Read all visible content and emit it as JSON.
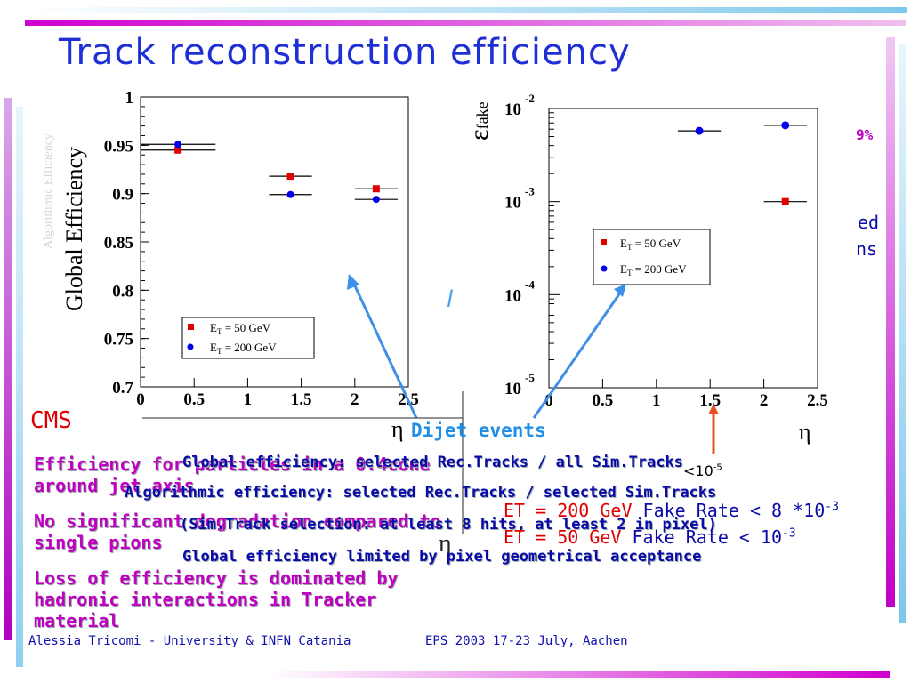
{
  "title": "Track reconstruction efficiency",
  "colors": {
    "accent_blue": "#1f2fd6",
    "magenta": "#c000c0",
    "red": "#e00000",
    "navy": "#0a0aa8"
  },
  "chart_data": [
    {
      "type": "scatter",
      "ylabel": "Global Efficiency",
      "xlim": [
        0,
        2.5
      ],
      "ylim": [
        0.7,
        1.0
      ],
      "xticks": [
        "0",
        "0.5",
        "1",
        "1.5",
        "2",
        "2.5"
      ],
      "yticks": [
        "0.7",
        "0.75",
        "0.8",
        "0.85",
        "0.9",
        "0.95",
        "1"
      ],
      "legend": [
        "E_T = 50 GeV",
        "E_T = 200 GeV"
      ],
      "series": [
        {
          "name": "E_T = 50 GeV",
          "color": "#e00000",
          "marker": "square",
          "points": [
            {
              "x": 0.35,
              "xerr": 0.35,
              "y": 0.945
            },
            {
              "x": 1.4,
              "xerr": 0.2,
              "y": 0.918
            },
            {
              "x": 2.2,
              "xerr": 0.2,
              "y": 0.905
            }
          ]
        },
        {
          "name": "E_T = 200 GeV",
          "color": "#0000ee",
          "marker": "circle",
          "points": [
            {
              "x": 0.35,
              "xerr": 0.35,
              "y": 0.951
            },
            {
              "x": 1.4,
              "xerr": 0.2,
              "y": 0.899
            },
            {
              "x": 2.2,
              "xerr": 0.2,
              "y": 0.894
            }
          ]
        }
      ]
    },
    {
      "type": "scatter",
      "ylabel": "ε_fake",
      "xlabel": "η",
      "xlim": [
        0,
        2.5
      ],
      "ylim_log10": [
        -5,
        -2
      ],
      "xticks": [
        "0",
        "0.5",
        "1",
        "1.5",
        "2",
        "2.5"
      ],
      "yticks": [
        "10^-5",
        "10^-4",
        "10^-3",
        "10^-2"
      ],
      "legend": [
        "E_T = 50 GeV",
        "E_T = 200 GeV"
      ],
      "series": [
        {
          "name": "E_T = 50 GeV",
          "color": "#e00000",
          "marker": "square",
          "points": [
            {
              "x": 2.2,
              "xerr": 0.2,
              "log10y": -3.0
            }
          ]
        },
        {
          "name": "E_T = 200 GeV",
          "color": "#0000ee",
          "marker": "circle",
          "points": [
            {
              "x": 1.4,
              "xerr": 0.2,
              "log10y": -2.24
            },
            {
              "x": 2.2,
              "xerr": 0.2,
              "log10y": -2.18
            }
          ]
        }
      ]
    }
  ],
  "plot1": {
    "ylabel": "Global Efficiency",
    "legend": [
      "E",
      "T",
      " = 50 GeV",
      "E",
      "T",
      " = 200 GeV"
    ]
  },
  "plot2": {
    "ylabel_main": "ε",
    "ylabel_sub": "fake",
    "eta": "η",
    "legend": [
      "E",
      "T",
      " = 50 GeV",
      "E",
      "T",
      " = 200 GeV"
    ]
  },
  "labels": {
    "cms": "CMS",
    "eta1": "η",
    "dijet": "Dijet events",
    "eta2": "η",
    "frag_99": "9%",
    "frag_ed": "ed",
    "frag_ns": "ns",
    "frag_l": "l",
    "frag_10": "<10",
    "frag_5": "-5",
    "ghost_eta": "η"
  },
  "left_text": {
    "l1": "Efficiency for particles in a 0.4cone",
    "l1b": "around jet axis",
    "l2": "No significant degradation compared to",
    "l2b": "single pions",
    "l3": "Loss of efficiency is dominated by",
    "l3b": "hadronic interactions in Tracker",
    "l3c": "material"
  },
  "mid_text": {
    "m1": "Global efficiency: selected Rec.Tracks / all Sim.Tracks",
    "m2": "Algorithmic efficiency: selected Rec.Tracks / selected Sim.Tracks",
    "m3": "(Sim.Track selection: at least 8 hits, at least 2 in pixel)",
    "m4": "Global efficiency limited by pixel geometrical acceptance"
  },
  "fake_rates": {
    "r1_et": "ET = 200 GeV",
    "r1_rest": " Fake Rate < 8 *10",
    "r1_exp": "-3",
    "r2_et": "ET = 50 GeV",
    "r2_rest": " Fake Rate < 10",
    "r2_exp": "-3"
  },
  "footer": {
    "author": "Alessia Tricomi - University & INFN Catania",
    "conf": "EPS 2003 17-23 July, Aachen"
  }
}
